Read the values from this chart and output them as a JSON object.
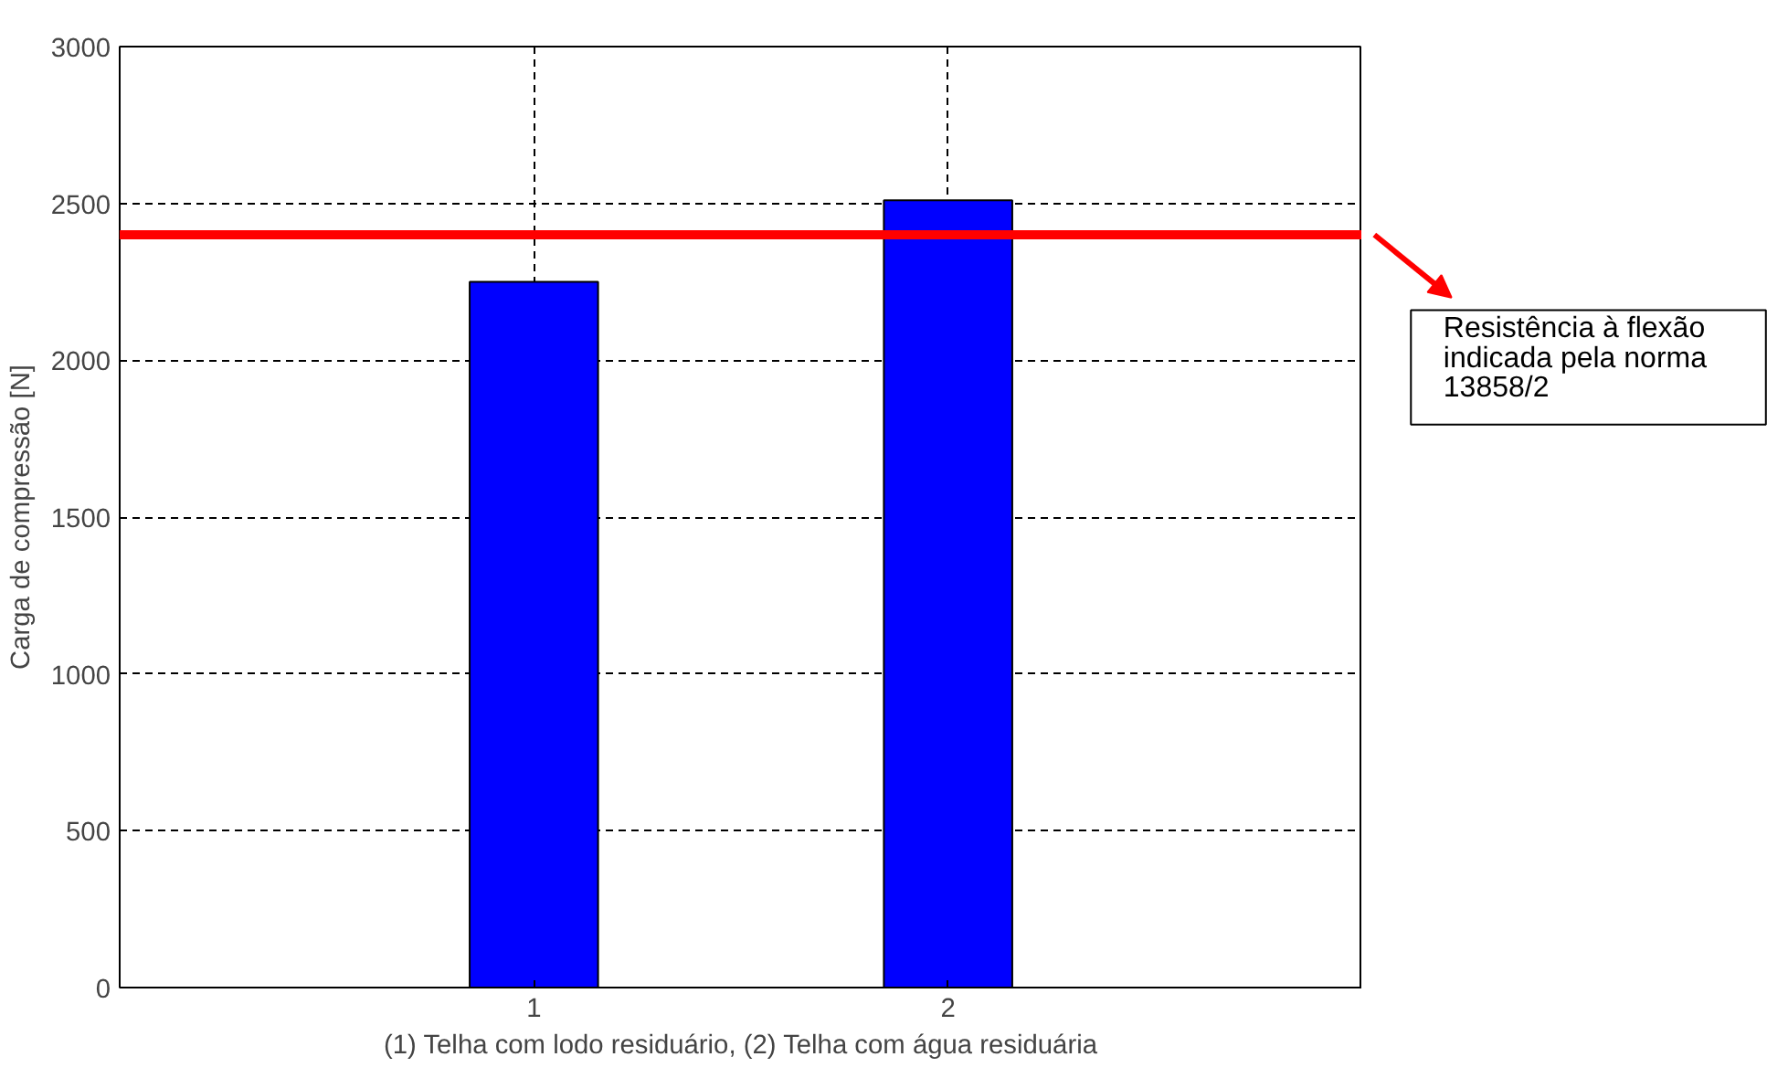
{
  "chart_data": {
    "type": "bar",
    "x": [
      1,
      2
    ],
    "values": [
      2250,
      2510
    ],
    "color": "#0000ff",
    "xlim": [
      0,
      3
    ],
    "xticks": [
      1,
      2
    ],
    "ylim": [
      0,
      3000
    ],
    "yticks": [
      0,
      500,
      1000,
      1500,
      2000,
      2500,
      3000
    ],
    "grid": true,
    "xlabel": "(1) Telha com lodo residuário, (2) Telha com água residuária",
    "ylabel": "Carga de compressão [N]",
    "ref_lines": [
      {
        "axis": "y",
        "value": 2400,
        "label": "Resistência à flexão indicada pela norma 13858/2",
        "color": "#ff0000"
      }
    ]
  }
}
